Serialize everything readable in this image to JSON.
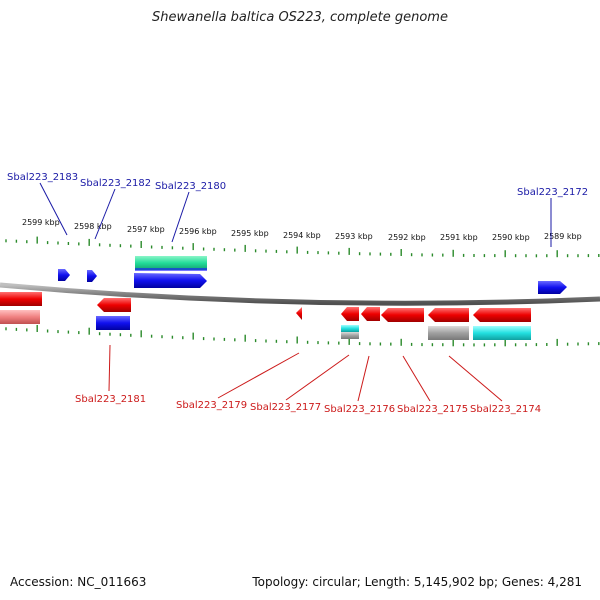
{
  "title": "Shewanella baltica OS223, complete genome",
  "footer": {
    "accession": "Accession: NC_011663",
    "summary": "Topology: circular; Length: 5,145,902 bp; Genes: 4,281"
  },
  "scale_labels": [
    "2599 kbp",
    "2598 kbp",
    "2597 kbp",
    "2596 kbp",
    "2595 kbp",
    "2594 kbp",
    "2593 kbp",
    "2592 kbp",
    "2591 kbp",
    "2590 kbp",
    "2589 kbp"
  ],
  "genes": {
    "top": [
      "Sbal223_2183",
      "Sbal223_2182",
      "Sbal223_2180",
      "Sbal223_2172"
    ],
    "bottom": [
      "Sbal223_2181",
      "Sbal223_2179",
      "Sbal223_2177",
      "Sbal223_2176",
      "Sbal223_2175",
      "Sbal223_2174"
    ]
  },
  "colors": {
    "forward_cds": "#1a1aff",
    "reverse_cds": "#ff1a1a",
    "forward_label": "#1a1aa6",
    "reverse_label": "#cc1a1a",
    "ticks": "#2a8a2a",
    "backbone": "#808080",
    "rna_green": "#33e6a0",
    "feature_cyan": "#33e6e6",
    "feature_grey": "#a8a8a8",
    "feature_pink": "#f08080"
  }
}
